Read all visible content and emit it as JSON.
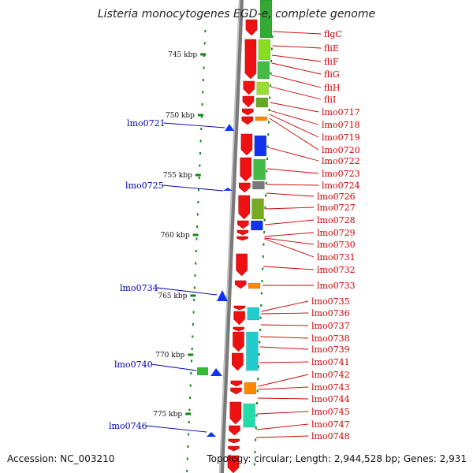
{
  "title": "Listeria monocytogenes EGD-e, complete genome",
  "footer": {
    "accession": "Accession: NC_003210",
    "summary": "Topology: circular; Length: 2,944,528 bp; Genes: 2,931"
  },
  "colors": {
    "backbone": "#7a7a7a",
    "forward_gene": "#ee1111",
    "label_right": "#cc0000",
    "label_left": "#0000aa",
    "tick": "#118811",
    "blue_gene": "#1133ee",
    "orange_gene": "#ff8800",
    "cyan_gene": "#22cccc",
    "green_gene": "#33bb33"
  },
  "ruler_ticks": [
    "745 kbp",
    "750 kbp",
    "755 kbp",
    "760 kbp",
    "765 kbp",
    "770 kbp",
    "775 kbp"
  ],
  "genes_right": [
    "flgC",
    "fliE",
    "fliF",
    "fliG",
    "fliH",
    "fliI",
    "lmo0717",
    "lmo0718",
    "lmo0719",
    "lmo0720",
    "lmo0722",
    "lmo0723",
    "lmo0724",
    "lmo0726",
    "lmo0727",
    "lmo0728",
    "lmo0729",
    "lmo0730",
    "lmo0731",
    "lmo0732",
    "lmo0733",
    "lmo0735",
    "lmo0736",
    "lmo0737",
    "lmo0738",
    "lmo0739",
    "lmo0741",
    "lmo0742",
    "lmo0743",
    "lmo0744",
    "lmo0745",
    "lmo0747",
    "lmo0748"
  ],
  "genes_left": [
    "lmo0721",
    "lmo0725",
    "lmo0734",
    "lmo0740",
    "lmo0746"
  ]
}
